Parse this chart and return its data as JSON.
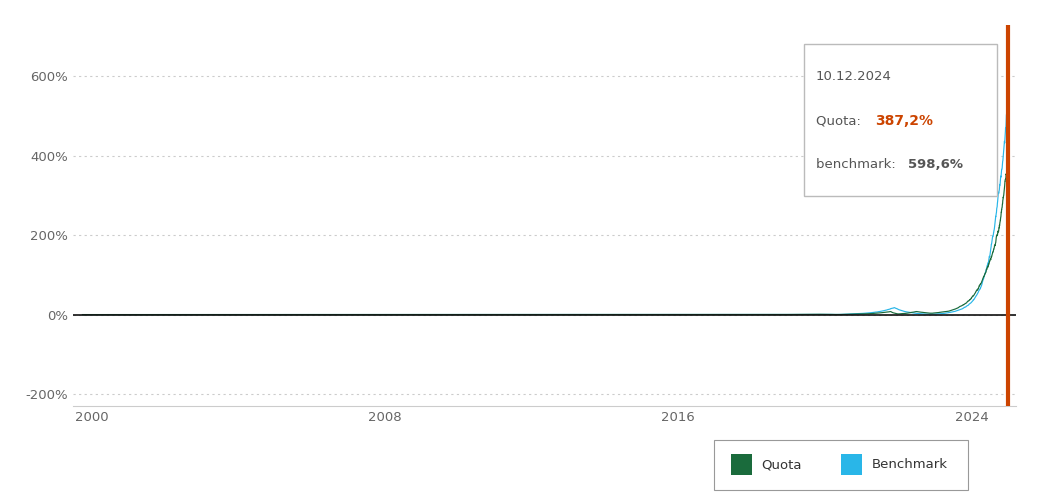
{
  "quota_color": "#1a6b3c",
  "benchmark_color": "#29b6e8",
  "vline_color": "#cc4400",
  "zero_line_color": "#111111",
  "grid_color": "#cccccc",
  "bg_color": "#ffffff",
  "ylim": [
    -230,
    730
  ],
  "yticks": [
    -200,
    0,
    200,
    400,
    600
  ],
  "ytick_labels": [
    "-200%",
    "0%",
    "200%",
    "400%",
    "600%"
  ],
  "xticks_years": [
    2000,
    2008,
    2016,
    2024
  ],
  "start_year": 1999.5,
  "end_year": 2025.2,
  "tooltip_date": "10.12.2024",
  "tooltip_quota_label": "Quota: ",
  "tooltip_quota_value": "387,2%",
  "tooltip_benchmark_label": "benchmark: ",
  "tooltip_benchmark_value": "598,6%",
  "legend_quota": "Quota",
  "legend_benchmark": "Benchmark"
}
